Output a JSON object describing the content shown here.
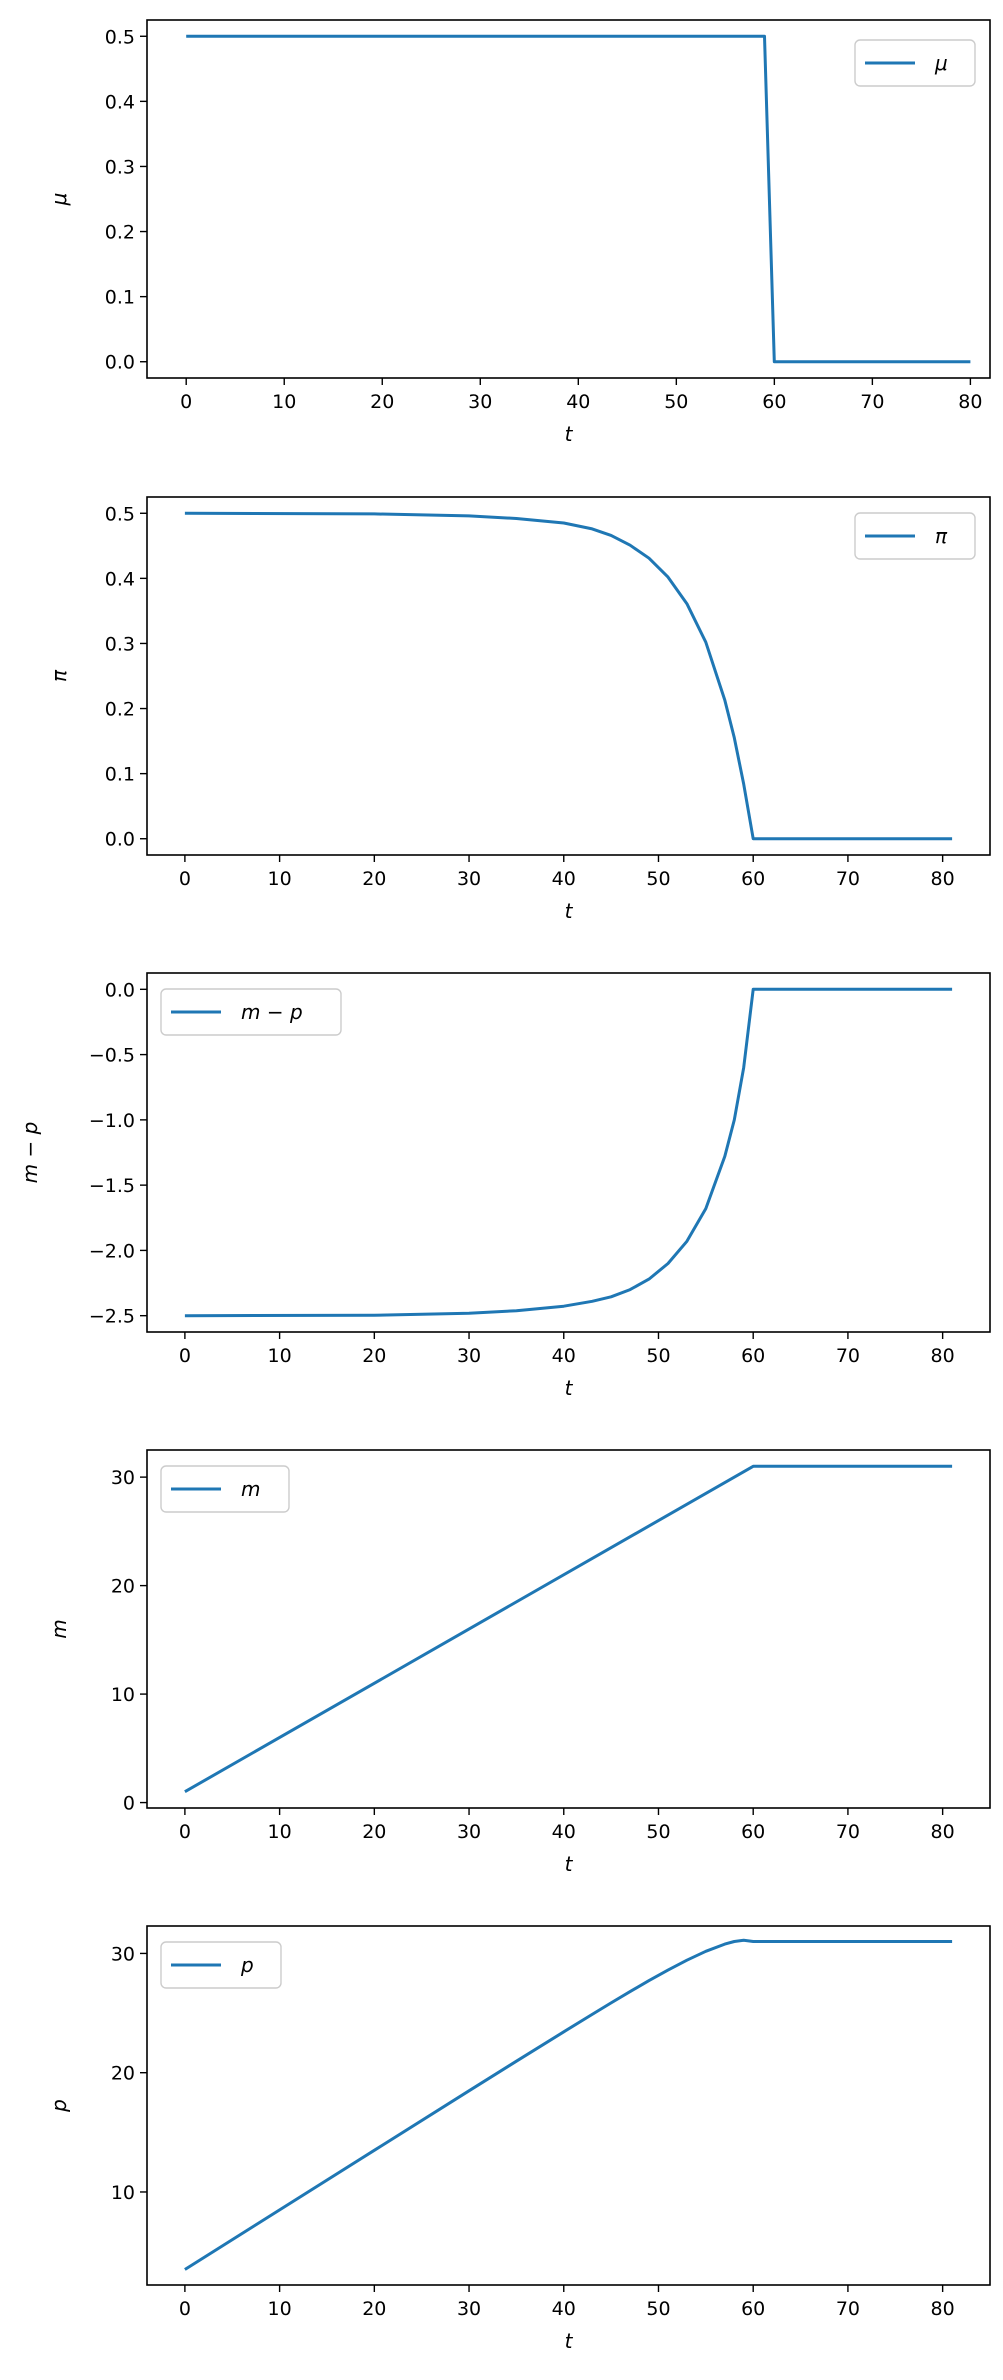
{
  "chart_data": [
    {
      "type": "line",
      "xlabel": "t",
      "ylabel": "μ",
      "xlim": [
        -4,
        82
      ],
      "ylim": [
        -0.025,
        0.525
      ],
      "xticks": [
        0,
        10,
        20,
        30,
        40,
        50,
        60,
        70,
        80
      ],
      "yticks": [
        0.0,
        0.1,
        0.2,
        0.3,
        0.4,
        0.5
      ],
      "ytick_labels": [
        "0.0",
        "0.1",
        "0.2",
        "0.3",
        "0.4",
        "0.5"
      ],
      "legend": "top-right",
      "series": [
        {
          "name": "μ",
          "color": "#1f77b4",
          "x": [
            0,
            59,
            60,
            80
          ],
          "y": [
            0.5,
            0.5,
            0.0,
            0.0
          ]
        }
      ]
    },
    {
      "type": "line",
      "xlabel": "t",
      "ylabel": "π",
      "xlim": [
        -4,
        85
      ],
      "ylim": [
        -0.025,
        0.525
      ],
      "xticks": [
        0,
        10,
        20,
        30,
        40,
        50,
        60,
        70,
        80
      ],
      "yticks": [
        0.0,
        0.1,
        0.2,
        0.3,
        0.4,
        0.5
      ],
      "ytick_labels": [
        "0.0",
        "0.1",
        "0.2",
        "0.3",
        "0.4",
        "0.5"
      ],
      "legend": "top-right",
      "series": [
        {
          "name": "π",
          "color": "#1f77b4",
          "x": [
            0,
            20,
            30,
            35,
            40,
            43,
            45,
            47,
            49,
            51,
            53,
            55,
            57,
            58,
            59,
            60,
            61,
            70,
            81
          ],
          "y": [
            0.5,
            0.499,
            0.496,
            0.492,
            0.485,
            0.476,
            0.466,
            0.451,
            0.431,
            0.402,
            0.361,
            0.302,
            0.213,
            0.155,
            0.084,
            0.0,
            0.0,
            0.0,
            0.0
          ]
        }
      ]
    },
    {
      "type": "line",
      "xlabel": "t",
      "ylabel": "m − p",
      "xlim": [
        -4,
        85
      ],
      "ylim": [
        -2.625,
        0.125
      ],
      "xticks": [
        0,
        10,
        20,
        30,
        40,
        50,
        60,
        70,
        80
      ],
      "yticks": [
        -2.5,
        -2.0,
        -1.5,
        -1.0,
        -0.5,
        0.0
      ],
      "ytick_labels": [
        "−2.5",
        "−2.0",
        "−1.5",
        "−1.0",
        "−0.5",
        "0.0"
      ],
      "legend": "top-left",
      "series": [
        {
          "name": "m − p",
          "color": "#1f77b4",
          "x": [
            0,
            20,
            30,
            35,
            40,
            43,
            45,
            47,
            49,
            51,
            53,
            55,
            57,
            58,
            59,
            60,
            61,
            70,
            81
          ],
          "y": [
            -2.5,
            -2.497,
            -2.482,
            -2.462,
            -2.427,
            -2.39,
            -2.355,
            -2.3,
            -2.22,
            -2.1,
            -1.93,
            -1.68,
            -1.28,
            -1.0,
            -0.6,
            0.0,
            0.0,
            0.0,
            0.0
          ]
        }
      ]
    },
    {
      "type": "line",
      "xlabel": "t",
      "ylabel": "m",
      "xlim": [
        -4,
        85
      ],
      "ylim": [
        -0.5,
        32.5
      ],
      "xticks": [
        0,
        10,
        20,
        30,
        40,
        50,
        60,
        70,
        80
      ],
      "yticks": [
        0,
        10,
        20,
        30
      ],
      "ytick_labels": [
        "0",
        "10",
        "20",
        "30"
      ],
      "legend": "top-left",
      "series": [
        {
          "name": "m",
          "color": "#1f77b4",
          "x": [
            0,
            60,
            61,
            81
          ],
          "y": [
            1.0,
            31.0,
            31.0,
            31.0
          ]
        }
      ]
    },
    {
      "type": "line",
      "xlabel": "t",
      "ylabel": "p",
      "xlim": [
        -4,
        85
      ],
      "ylim": [
        2.2,
        32.3
      ],
      "xticks": [
        0,
        10,
        20,
        30,
        40,
        50,
        60,
        70,
        80
      ],
      "yticks": [
        10,
        20,
        30
      ],
      "ytick_labels": [
        "10",
        "20",
        "30"
      ],
      "legend": "top-left",
      "series": [
        {
          "name": "p",
          "color": "#1f77b4",
          "x": [
            0,
            20,
            30,
            35,
            40,
            43,
            45,
            47,
            49,
            51,
            53,
            55,
            57,
            58,
            59,
            60,
            61,
            70,
            81
          ],
          "y": [
            3.5,
            13.497,
            18.482,
            20.962,
            23.427,
            24.89,
            25.855,
            26.8,
            27.72,
            28.6,
            29.43,
            30.18,
            30.78,
            31.0,
            31.1,
            31.0,
            31.0,
            31.0,
            31.0
          ]
        }
      ]
    }
  ]
}
